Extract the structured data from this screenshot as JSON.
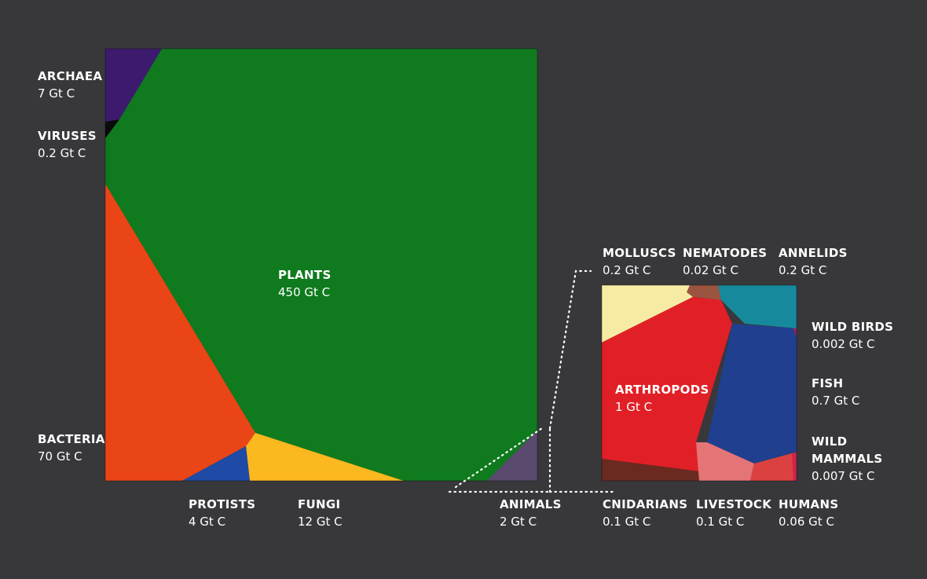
{
  "chart_data": [
    {
      "type": "voronoi-treemap",
      "title": "",
      "unit": "Gt C",
      "cells": [
        {
          "id": "plants",
          "name": "PLANTS",
          "value": 450,
          "value_label": "450 Gt C",
          "color": "#0f7a1e"
        },
        {
          "id": "bacteria",
          "name": "BACTERIA",
          "value": 70,
          "value_label": "70 Gt C",
          "color": "#e94516"
        },
        {
          "id": "fungi",
          "name": "FUNGI",
          "value": 12,
          "value_label": "12 Gt C",
          "color": "#fbb81f"
        },
        {
          "id": "archaea",
          "name": "ARCHAEA",
          "value": 7,
          "value_label": "7 Gt C",
          "color": "#3d1a6e"
        },
        {
          "id": "protists",
          "name": "PROTISTS",
          "value": 4,
          "value_label": "4 Gt C",
          "color": "#1f4aa5"
        },
        {
          "id": "animals",
          "name": "ANIMALS",
          "value": 2,
          "value_label": "2 Gt C",
          "color": "#5a4a6e"
        },
        {
          "id": "viruses",
          "name": "VIRUSES",
          "value": 0.2,
          "value_label": "0.2 Gt C",
          "color": "#0b0b0b"
        }
      ]
    },
    {
      "type": "voronoi-treemap",
      "title": "",
      "parent": "ANIMALS",
      "unit": "Gt C",
      "cells": [
        {
          "id": "arthropods",
          "name": "ARTHROPODS",
          "value": 1,
          "value_label": "1 Gt C",
          "color": "#e11f26"
        },
        {
          "id": "fish",
          "name": "FISH",
          "value": 0.7,
          "value_label": "0.7 Gt C",
          "color": "#203f8e"
        },
        {
          "id": "molluscs",
          "name": "MOLLUSCS",
          "value": 0.2,
          "value_label": "0.2 Gt C",
          "color": "#f7eaa3"
        },
        {
          "id": "annelids",
          "name": "ANNELIDS",
          "value": 0.2,
          "value_label": "0.2 Gt C",
          "color": "#168a9c"
        },
        {
          "id": "cnidarians",
          "name": "CNIDARIANS",
          "value": 0.1,
          "value_label": "0.1 Gt C",
          "color": "#6a2a20"
        },
        {
          "id": "livestock",
          "name": "LIVESTOCK",
          "value": 0.1,
          "value_label": "0.1 Gt C",
          "color": "#e47476"
        },
        {
          "id": "humans",
          "name": "HUMANS",
          "value": 0.06,
          "value_label": "0.06 Gt C",
          "color": "#db4140"
        },
        {
          "id": "nematodes",
          "name": "NEMATODES",
          "value": 0.02,
          "value_label": "0.02 Gt C",
          "color": "#9a5440"
        },
        {
          "id": "wild_mammals",
          "name": "WILD\nMAMMALS",
          "value": 0.007,
          "value_label": "0.007 Gt C",
          "color": "#d0234a"
        },
        {
          "id": "wild_birds",
          "name": "WILD BIRDS",
          "value": 0.002,
          "value_label": "0.002 Gt C",
          "color": "#a0205a"
        }
      ]
    }
  ]
}
